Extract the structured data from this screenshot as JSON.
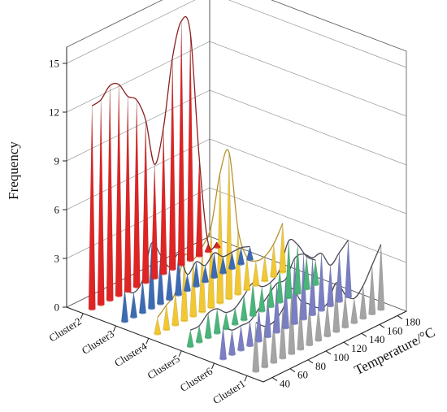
{
  "chart_data": {
    "type": "3d-spike",
    "ylabel": "Frequency",
    "xlabel": "Temperature/°C",
    "zlim": [
      0,
      16
    ],
    "z_ticks": [
      "0",
      "3",
      "6",
      "9",
      "12",
      "15"
    ],
    "temperature_range": [
      30,
      190
    ],
    "temperature_ticks": [
      "40",
      "60",
      "80",
      "100",
      "120",
      "140",
      "160",
      "180"
    ],
    "grid": true,
    "series": [
      {
        "name": "Cluster2",
        "color": "#e02424",
        "temperatures": [
          40,
          50,
          60,
          70,
          80,
          90,
          100,
          110,
          120,
          130,
          140,
          150,
          160,
          170,
          180
        ],
        "values": [
          12.5,
          12.6,
          13.2,
          13,
          12,
          11.5,
          10,
          7,
          9,
          13,
          15,
          14,
          6,
          0.5,
          0.3
        ]
      },
      {
        "name": "Cluster3",
        "color": "#3d6bb3",
        "temperatures": [
          40,
          50,
          60,
          70,
          80,
          90,
          100,
          110,
          120,
          130,
          140,
          150,
          160,
          170,
          180
        ],
        "values": [
          2,
          1.5,
          2,
          4,
          3,
          2,
          2.5,
          1,
          1.5,
          1,
          1.5,
          1,
          1,
          1,
          0.8
        ]
      },
      {
        "name": "Cluster4",
        "color": "#f2c832",
        "temperatures": [
          40,
          50,
          60,
          70,
          80,
          90,
          100,
          110,
          120,
          130,
          140,
          150,
          160,
          170,
          180
        ],
        "values": [
          1,
          1.5,
          2,
          4,
          3.5,
          4,
          5,
          8,
          9,
          4,
          2,
          1.5,
          1.5,
          2,
          3
        ]
      },
      {
        "name": "Cluster5",
        "color": "#4ab57a",
        "temperatures": [
          40,
          50,
          60,
          70,
          80,
          90,
          100,
          110,
          120,
          130,
          140,
          150,
          160,
          170,
          180
        ],
        "values": [
          1,
          1,
          1.5,
          1.5,
          1,
          1,
          1.5,
          2,
          1.5,
          1.5,
          2,
          3.5,
          3,
          2,
          1.5
        ]
      },
      {
        "name": "Cluster6",
        "color": "#7a7fc4",
        "temperatures": [
          40,
          50,
          60,
          70,
          80,
          90,
          100,
          110,
          120,
          130,
          140,
          150,
          160,
          170,
          180
        ],
        "values": [
          2,
          1.5,
          1.5,
          1.5,
          2,
          2.5,
          3,
          3,
          4,
          4,
          3.5,
          3.5,
          2.5,
          3,
          3.5
        ]
      },
      {
        "name": "Cluster1",
        "color": "#a4a4a4",
        "temperatures": [
          40,
          50,
          60,
          70,
          80,
          90,
          100,
          110,
          120,
          130,
          140,
          150,
          160,
          170,
          180
        ],
        "values": [
          3,
          2.5,
          2.5,
          3,
          4,
          3,
          2.5,
          2,
          2,
          3,
          2,
          1.5,
          2,
          3,
          4
        ]
      }
    ]
  }
}
